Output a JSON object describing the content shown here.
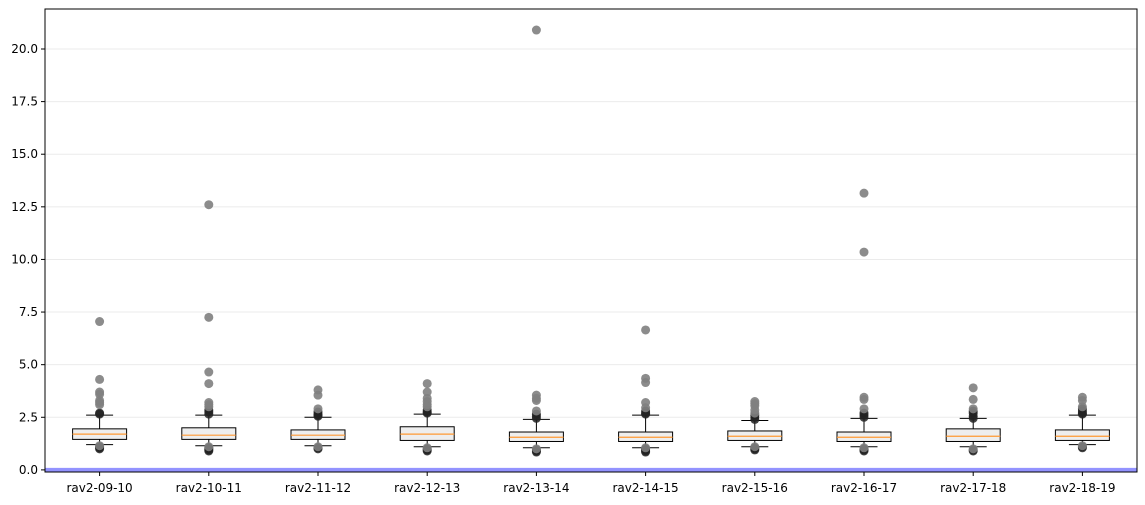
{
  "chart_data": {
    "type": "box",
    "title": "",
    "xlabel": "",
    "ylabel": "",
    "ylim": [
      -0.1,
      21.9
    ],
    "yticks": [
      0.0,
      2.5,
      5.0,
      7.5,
      10.0,
      12.5,
      15.0,
      17.5,
      20.0
    ],
    "ytick_labels": [
      "0.0",
      "2.5",
      "5.0",
      "7.5",
      "10.0",
      "12.5",
      "15.0",
      "17.5",
      "20.0"
    ],
    "grid": "horizontal",
    "reference_line": {
      "y": 0.0,
      "color": "#8080ff"
    },
    "colors": {
      "box_fill": "#eeeeee",
      "median": "#ff9933",
      "outlier": "#808080",
      "outlier_dense": "#222222"
    },
    "categories": [
      "rav2-09-10",
      "rav2-10-11",
      "rav2-11-12",
      "rav2-12-13",
      "rav2-13-14",
      "rav2-14-15",
      "rav2-15-16",
      "rav2-16-17",
      "rav2-17-18",
      "rav2-18-19"
    ],
    "boxes": [
      {
        "q1": 1.45,
        "median": 1.7,
        "q3": 1.95,
        "whisker_low": 1.2,
        "whisker_high": 2.6,
        "outliers_high": [
          2.65,
          2.7,
          3.1,
          3.2,
          3.3,
          3.6,
          3.7,
          4.3,
          7.05
        ],
        "outliers_low": [
          1.0,
          1.05,
          1.1,
          1.15
        ]
      },
      {
        "q1": 1.45,
        "median": 1.65,
        "q3": 2.0,
        "whisker_low": 1.15,
        "whisker_high": 2.6,
        "outliers_high": [
          2.65,
          2.75,
          2.85,
          3.0,
          3.1,
          3.2,
          4.1,
          4.65,
          7.25,
          12.6
        ],
        "outliers_low": [
          0.9,
          0.95,
          1.0,
          1.05,
          1.1
        ]
      },
      {
        "q1": 1.45,
        "median": 1.65,
        "q3": 1.9,
        "whisker_low": 1.15,
        "whisker_high": 2.5,
        "outliers_high": [
          2.55,
          2.6,
          2.65,
          2.75,
          2.9,
          3.55,
          3.8
        ],
        "outliers_low": [
          1.0,
          1.05,
          1.1
        ]
      },
      {
        "q1": 1.4,
        "median": 1.7,
        "q3": 2.05,
        "whisker_low": 1.1,
        "whisker_high": 2.65,
        "outliers_high": [
          2.7,
          2.75,
          2.85,
          3.0,
          3.1,
          3.25,
          3.4,
          3.7,
          4.1
        ],
        "outliers_low": [
          0.9,
          0.95,
          1.0,
          1.05
        ]
      },
      {
        "q1": 1.35,
        "median": 1.55,
        "q3": 1.8,
        "whisker_low": 1.05,
        "whisker_high": 2.4,
        "outliers_high": [
          2.45,
          2.55,
          2.65,
          2.8,
          3.3,
          3.4,
          3.55,
          20.9
        ],
        "outliers_low": [
          0.85,
          0.9,
          0.95,
          1.0
        ]
      },
      {
        "q1": 1.35,
        "median": 1.55,
        "q3": 1.8,
        "whisker_low": 1.05,
        "whisker_high": 2.6,
        "outliers_high": [
          2.65,
          2.7,
          2.8,
          2.95,
          3.2,
          4.15,
          4.35,
          6.65
        ],
        "outliers_low": [
          0.85,
          0.9,
          0.95,
          1.0,
          1.05
        ]
      },
      {
        "q1": 1.4,
        "median": 1.6,
        "q3": 1.85,
        "whisker_low": 1.1,
        "whisker_high": 2.35,
        "outliers_high": [
          2.4,
          2.5,
          2.6,
          2.7,
          2.85,
          3.05,
          3.15,
          3.25
        ],
        "outliers_low": [
          0.95,
          1.0,
          1.05,
          1.1
        ]
      },
      {
        "q1": 1.35,
        "median": 1.55,
        "q3": 1.8,
        "whisker_low": 1.1,
        "whisker_high": 2.45,
        "outliers_high": [
          2.5,
          2.6,
          2.7,
          2.9,
          3.35,
          3.45,
          10.35,
          13.15
        ],
        "outliers_low": [
          0.9,
          0.95,
          1.0,
          1.05
        ]
      },
      {
        "q1": 1.35,
        "median": 1.6,
        "q3": 1.95,
        "whisker_low": 1.1,
        "whisker_high": 2.45,
        "outliers_high": [
          2.45,
          2.55,
          2.7,
          2.8,
          2.9,
          3.35,
          3.9
        ],
        "outliers_low": [
          0.9,
          0.95,
          1.0
        ]
      },
      {
        "q1": 1.4,
        "median": 1.6,
        "q3": 1.9,
        "whisker_low": 1.2,
        "whisker_high": 2.6,
        "outliers_high": [
          2.65,
          2.7,
          2.8,
          2.9,
          3.0,
          3.3,
          3.45
        ],
        "outliers_low": [
          1.05,
          1.1,
          1.15
        ]
      }
    ]
  }
}
